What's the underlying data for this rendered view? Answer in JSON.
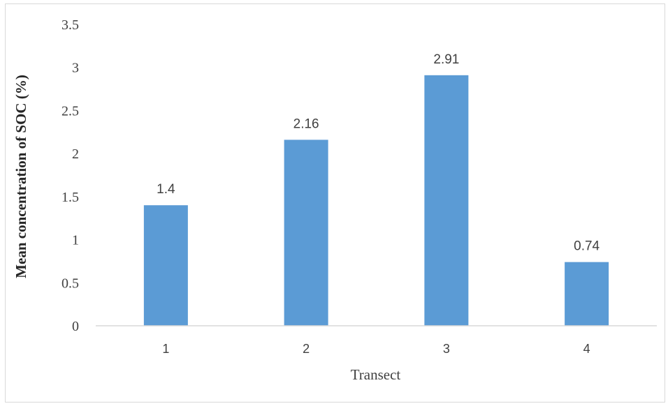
{
  "chart_data": {
    "type": "bar",
    "title": "",
    "xlabel": "Transect",
    "ylabel": "Mean concentration of SOC (%)",
    "categories": [
      "1",
      "2",
      "3",
      "4"
    ],
    "values": [
      1.4,
      2.16,
      2.91,
      0.74
    ],
    "data_labels": [
      "1.4",
      "2.16",
      "2.91",
      "0.74"
    ],
    "ylim": [
      0,
      3.5
    ],
    "yticks": [
      0,
      0.5,
      1,
      1.5,
      2,
      2.5,
      3,
      3.5
    ],
    "ytick_labels": [
      "0",
      "0.5",
      "1",
      "1.5",
      "2",
      "2.5",
      "3",
      "3.5"
    ],
    "grid": false,
    "legend": "none",
    "bar_color": "#5b9bd5",
    "axis_color": "#d9d9d9"
  }
}
